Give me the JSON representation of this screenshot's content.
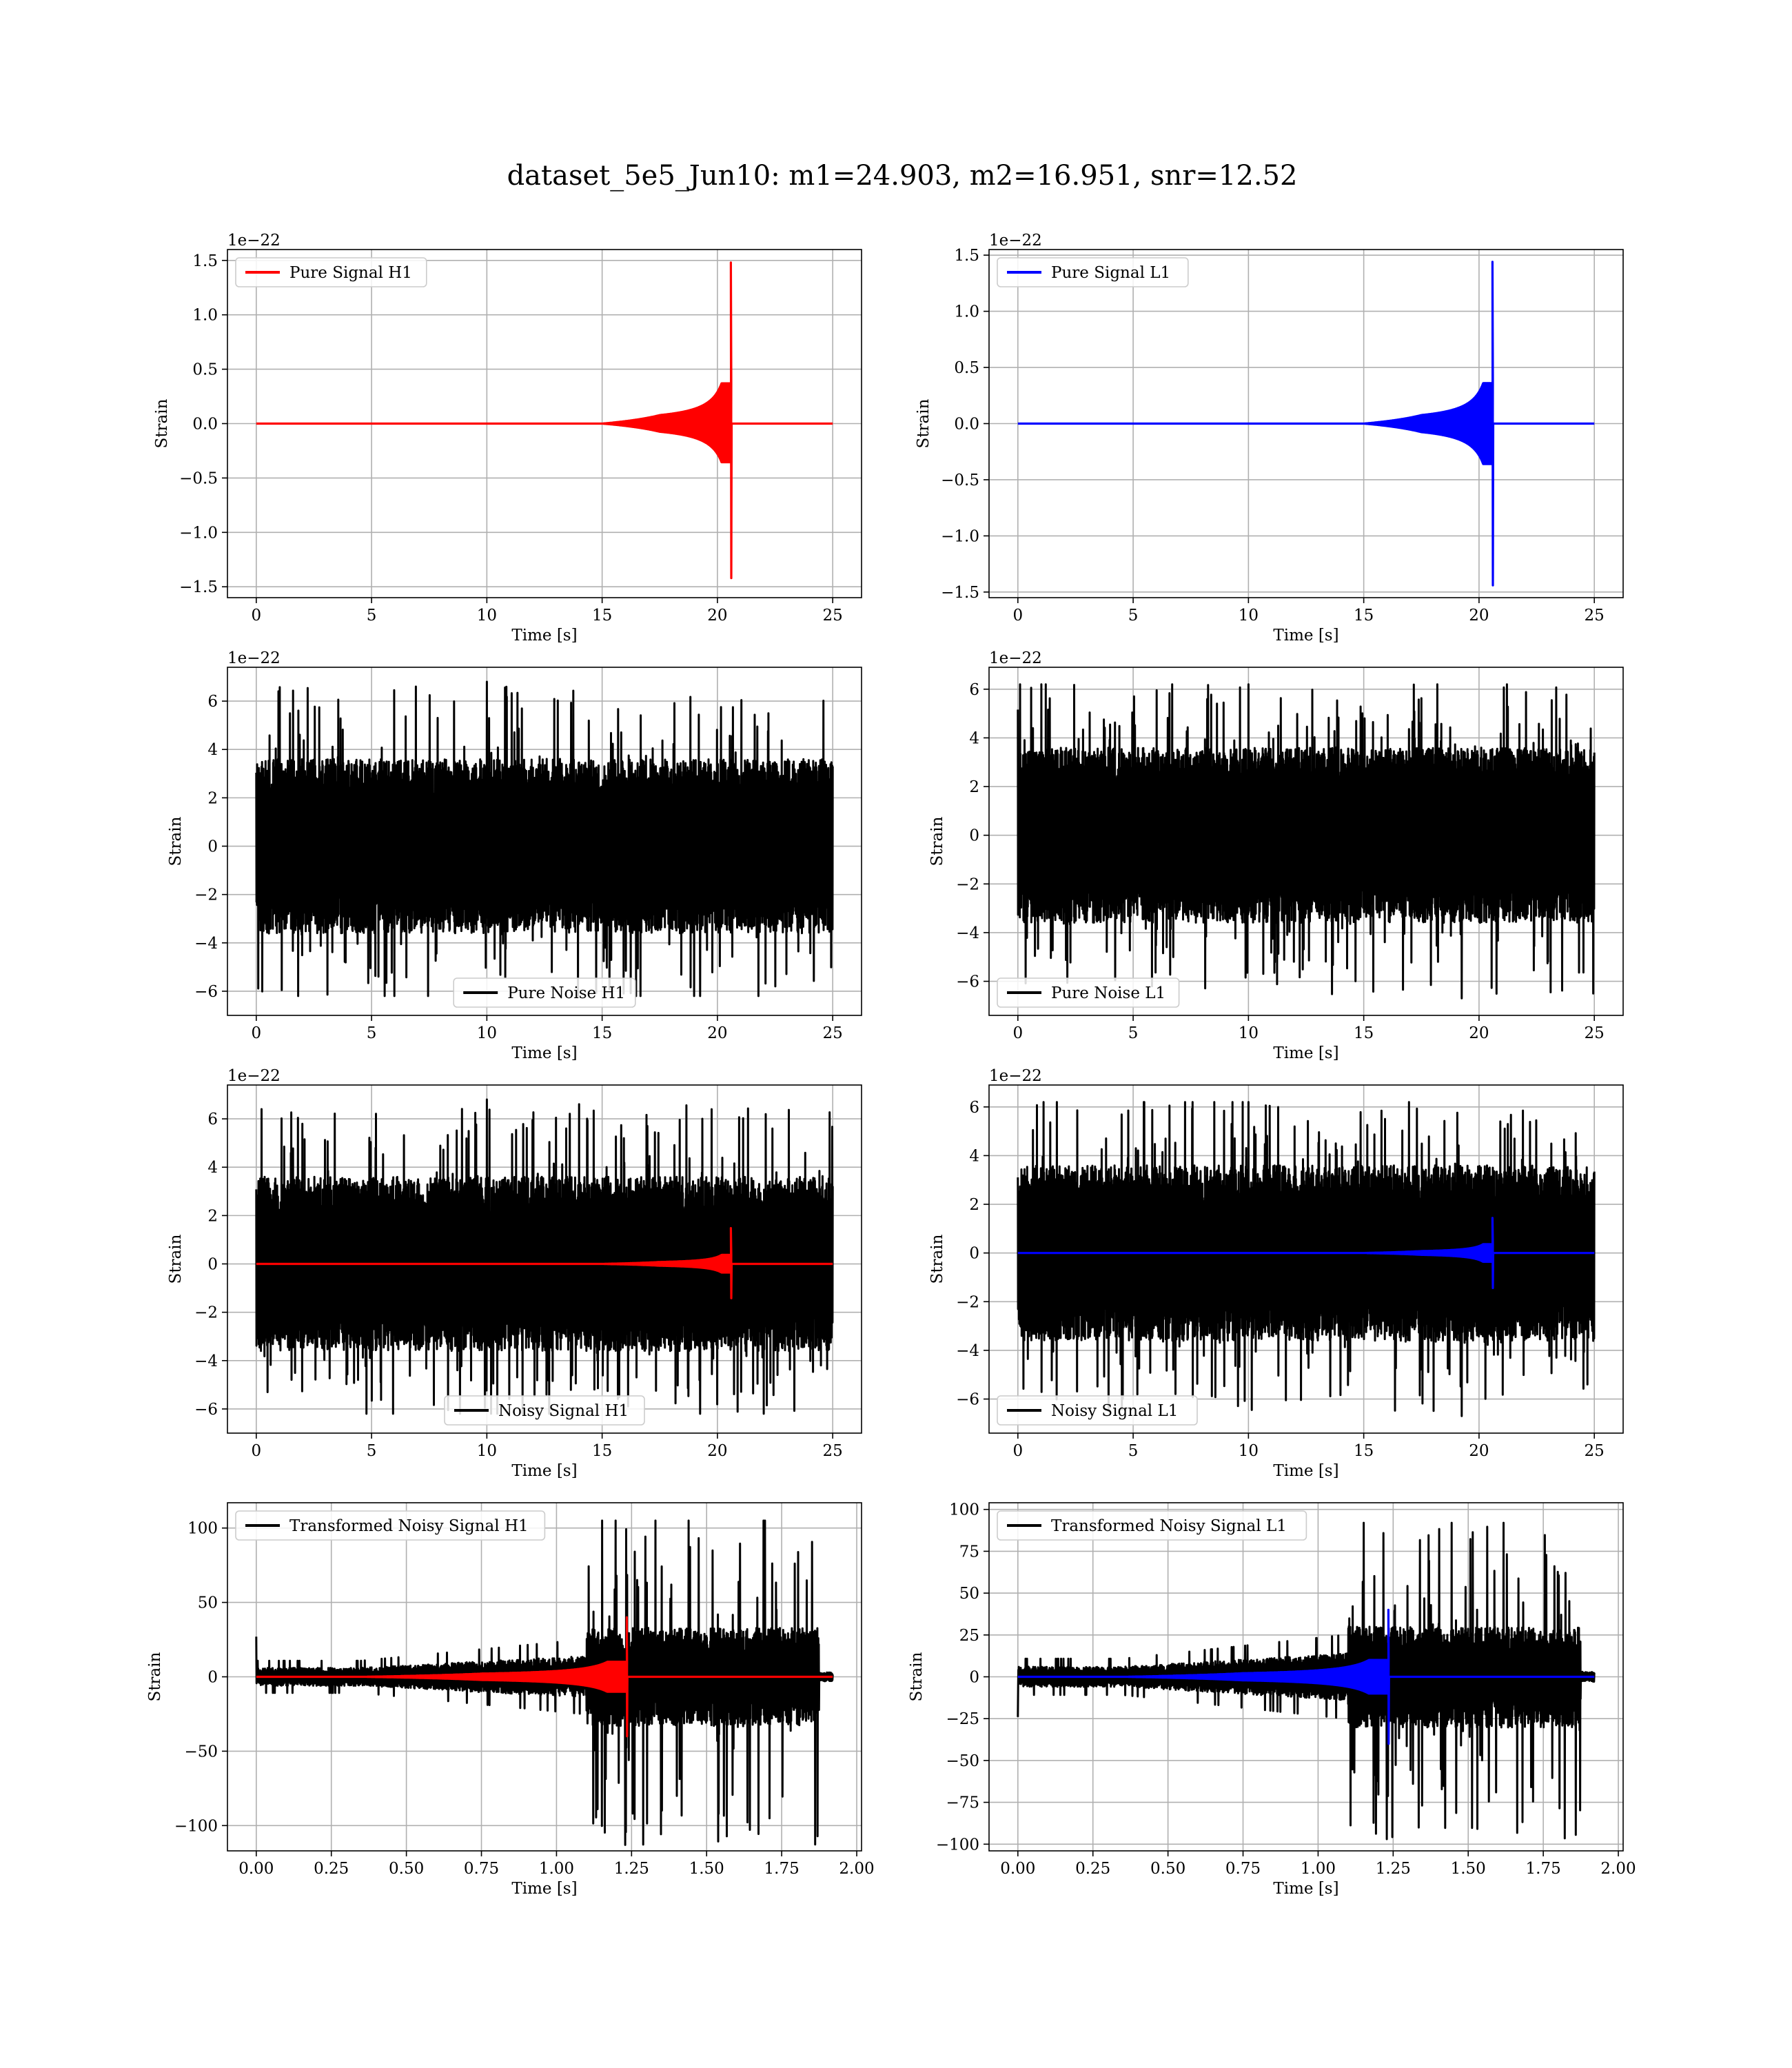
{
  "figure": {
    "title": "dataset_5e5_Jun10: m1=24.903, m2=16.951, snr=12.52"
  },
  "colors": {
    "h1_signal": "#ff0000",
    "l1_signal": "#0000ff",
    "noise": "#000000",
    "grid": "#b0b0b0"
  },
  "chart_data": [
    {
      "id": "pure-signal-h1",
      "type": "line",
      "xlabel": "Time [s]",
      "ylabel": "Strain",
      "offset_text": "1e−22",
      "xlim": [
        -1.25,
        26.25
      ],
      "ylim": [
        -1.6,
        1.6
      ],
      "xticks": [
        0,
        5,
        10,
        15,
        20,
        25
      ],
      "xtick_labels": [
        "0",
        "5",
        "10",
        "15",
        "20",
        "25"
      ],
      "yticks": [
        -1.5,
        -1.0,
        -0.5,
        0.0,
        0.5,
        1.0,
        1.5
      ],
      "ytick_labels": [
        "−1.5",
        "−1.0",
        "−0.5",
        "0.0",
        "0.5",
        "1.0",
        "1.5"
      ],
      "legend": {
        "position": "upper-left"
      },
      "series": [
        {
          "name": "Pure Signal H1",
          "color": "#ff0000",
          "kind": "chirp",
          "x_start": 0,
          "x_end": 25,
          "merger_x": 20.6,
          "peak_amplitude": 1.48,
          "min_amplitude": -1.42,
          "ring_start": 17.5
        }
      ]
    },
    {
      "id": "pure-signal-l1",
      "type": "line",
      "xlabel": "Time [s]",
      "ylabel": "Strain",
      "offset_text": "1e−22",
      "xlim": [
        -1.25,
        26.25
      ],
      "ylim": [
        -1.55,
        1.55
      ],
      "xticks": [
        0,
        5,
        10,
        15,
        20,
        25
      ],
      "xtick_labels": [
        "0",
        "5",
        "10",
        "15",
        "20",
        "25"
      ],
      "yticks": [
        -1.5,
        -1.0,
        -0.5,
        0.0,
        0.5,
        1.0,
        1.5
      ],
      "ytick_labels": [
        "−1.5",
        "−1.0",
        "−0.5",
        "0.0",
        "0.5",
        "1.0",
        "1.5"
      ],
      "legend": {
        "position": "upper-left"
      },
      "series": [
        {
          "name": "Pure Signal L1",
          "color": "#0000ff",
          "kind": "chirp",
          "x_start": 0,
          "x_end": 25,
          "merger_x": 20.6,
          "peak_amplitude": 1.44,
          "min_amplitude": -1.44,
          "ring_start": 17.5
        }
      ]
    },
    {
      "id": "pure-noise-h1",
      "type": "line",
      "xlabel": "Time [s]",
      "ylabel": "Strain",
      "offset_text": "1e−22",
      "xlim": [
        -1.25,
        26.25
      ],
      "ylim": [
        -7.0,
        7.4
      ],
      "xticks": [
        0,
        5,
        10,
        15,
        20,
        25
      ],
      "xtick_labels": [
        "0",
        "5",
        "10",
        "15",
        "20",
        "25"
      ],
      "yticks": [
        -6,
        -4,
        -2,
        0,
        2,
        4,
        6
      ],
      "ytick_labels": [
        "−6",
        "−4",
        "−2",
        "0",
        "2",
        "4",
        "6"
      ],
      "legend": {
        "position": "lower-center"
      },
      "series": [
        {
          "name": "Pure Noise H1",
          "color": "#000000",
          "kind": "noise",
          "x_start": 0,
          "x_end": 25,
          "band": 3.6,
          "spike_max": 6.8,
          "spike_min": -6.2
        }
      ]
    },
    {
      "id": "pure-noise-l1",
      "type": "line",
      "xlabel": "Time [s]",
      "ylabel": "Strain",
      "offset_text": "1e−22",
      "xlim": [
        -1.25,
        26.25
      ],
      "ylim": [
        -7.4,
        6.9
      ],
      "xticks": [
        0,
        5,
        10,
        15,
        20,
        25
      ],
      "xtick_labels": [
        "0",
        "5",
        "10",
        "15",
        "20",
        "25"
      ],
      "yticks": [
        -6,
        -4,
        -2,
        0,
        2,
        4,
        6
      ],
      "ytick_labels": [
        "−6",
        "−4",
        "−2",
        "0",
        "2",
        "4",
        "6"
      ],
      "legend": {
        "position": "lower-left"
      },
      "series": [
        {
          "name": "Pure Noise L1",
          "color": "#000000",
          "kind": "noise",
          "x_start": 0,
          "x_end": 25,
          "band": 3.6,
          "spike_max": 6.2,
          "spike_min": -6.7
        }
      ]
    },
    {
      "id": "noisy-signal-h1",
      "type": "line",
      "xlabel": "Time [s]",
      "ylabel": "Strain",
      "offset_text": "1e−22",
      "xlim": [
        -1.25,
        26.25
      ],
      "ylim": [
        -7.0,
        7.4
      ],
      "xticks": [
        0,
        5,
        10,
        15,
        20,
        25
      ],
      "xtick_labels": [
        "0",
        "5",
        "10",
        "15",
        "20",
        "25"
      ],
      "yticks": [
        -6,
        -4,
        -2,
        0,
        2,
        4,
        6
      ],
      "ytick_labels": [
        "−6",
        "−4",
        "−2",
        "0",
        "2",
        "4",
        "6"
      ],
      "legend": {
        "position": "lower-center"
      },
      "series": [
        {
          "name": "Noisy Signal H1",
          "color": "#000000",
          "kind": "noise",
          "x_start": 0,
          "x_end": 25,
          "band": 3.6,
          "spike_max": 6.8,
          "spike_min": -6.2
        },
        {
          "name": "",
          "color": "#ff0000",
          "kind": "chirp",
          "x_start": 0,
          "x_end": 25,
          "merger_x": 20.6,
          "peak_amplitude": 1.48,
          "min_amplitude": -1.42,
          "ring_start": 17.5
        }
      ]
    },
    {
      "id": "noisy-signal-l1",
      "type": "line",
      "xlabel": "Time [s]",
      "ylabel": "Strain",
      "offset_text": "1e−22",
      "xlim": [
        -1.25,
        26.25
      ],
      "ylim": [
        -7.4,
        6.9
      ],
      "xticks": [
        0,
        5,
        10,
        15,
        20,
        25
      ],
      "xtick_labels": [
        "0",
        "5",
        "10",
        "15",
        "20",
        "25"
      ],
      "yticks": [
        -6,
        -4,
        -2,
        0,
        2,
        4,
        6
      ],
      "ytick_labels": [
        "−6",
        "−4",
        "−2",
        "0",
        "2",
        "4",
        "6"
      ],
      "legend": {
        "position": "lower-left"
      },
      "series": [
        {
          "name": "Noisy Signal L1",
          "color": "#000000",
          "kind": "noise",
          "x_start": 0,
          "x_end": 25,
          "band": 3.6,
          "spike_max": 6.2,
          "spike_min": -6.7
        },
        {
          "name": "",
          "color": "#0000ff",
          "kind": "chirp",
          "x_start": 0,
          "x_end": 25,
          "merger_x": 20.6,
          "peak_amplitude": 1.44,
          "min_amplitude": -1.44,
          "ring_start": 17.5
        }
      ]
    },
    {
      "id": "transformed-noisy-signal-h1",
      "type": "line",
      "xlabel": "Time [s]",
      "ylabel": "Strain",
      "offset_text": "",
      "xlim": [
        -0.096,
        2.016
      ],
      "ylim": [
        -117,
        117
      ],
      "xticks": [
        0,
        0.25,
        0.5,
        0.75,
        1.0,
        1.25,
        1.5,
        1.75,
        2.0
      ],
      "xtick_labels": [
        "0.00",
        "0.25",
        "0.50",
        "0.75",
        "1.00",
        "1.25",
        "1.50",
        "1.75",
        "2.00"
      ],
      "yticks": [
        -100,
        -50,
        0,
        50,
        100
      ],
      "ytick_labels": [
        "−100",
        "−50",
        "0",
        "50",
        "100"
      ],
      "legend": {
        "position": "upper-left"
      },
      "series": [
        {
          "name": "Transformed Noisy Signal H1",
          "color": "#000000",
          "kind": "whitened",
          "x_start": 0,
          "x_end": 1.92,
          "burst_start": 1.1,
          "burst_end": 1.875,
          "low_band": 6,
          "burst_band": 60,
          "spike_max": 105,
          "spike_min": -113,
          "start_spike": 27
        },
        {
          "name": "",
          "color": "#ff0000",
          "kind": "chirp",
          "x_start": 0,
          "x_end": 1.92,
          "merger_x": 1.235,
          "peak_amplitude": 40,
          "min_amplitude": -40,
          "ring_start": 0.75
        }
      ]
    },
    {
      "id": "transformed-noisy-signal-l1",
      "type": "line",
      "xlabel": "Time [s]",
      "ylabel": "Strain",
      "offset_text": "",
      "xlim": [
        -0.096,
        2.016
      ],
      "ylim": [
        -104,
        104
      ],
      "xticks": [
        0,
        0.25,
        0.5,
        0.75,
        1.0,
        1.25,
        1.5,
        1.75,
        2.0
      ],
      "xtick_labels": [
        "0.00",
        "0.25",
        "0.50",
        "0.75",
        "1.00",
        "1.25",
        "1.50",
        "1.75",
        "2.00"
      ],
      "yticks": [
        -100,
        -75,
        -50,
        -25,
        0,
        25,
        50,
        75,
        100
      ],
      "ytick_labels": [
        "−100",
        "−75",
        "−50",
        "−25",
        "0",
        "25",
        "50",
        "75",
        "100"
      ],
      "legend": {
        "position": "upper-left"
      },
      "series": [
        {
          "name": "Transformed Noisy Signal L1",
          "color": "#000000",
          "kind": "whitened",
          "x_start": 0,
          "x_end": 1.92,
          "burst_start": 1.1,
          "burst_end": 1.875,
          "low_band": 6,
          "burst_band": 55,
          "spike_max": 92,
          "spike_min": -97,
          "start_spike": -24
        },
        {
          "name": "",
          "color": "#0000ff",
          "kind": "chirp",
          "x_start": 0,
          "x_end": 1.92,
          "merger_x": 1.235,
          "peak_amplitude": 40,
          "min_amplitude": -40,
          "ring_start": 0.75
        }
      ]
    }
  ]
}
